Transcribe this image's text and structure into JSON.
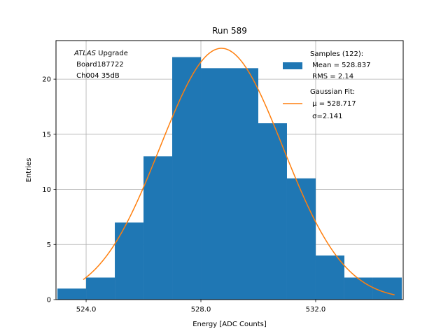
{
  "chart_data": {
    "type": "bar",
    "title": "Run 589",
    "xlabel": "Energy [ADC Counts]",
    "ylabel": "Entries",
    "xlim": [
      522.95,
      535.05
    ],
    "ylim": [
      0,
      23.5
    ],
    "grid": true,
    "x_ticks": [
      524.0,
      528.0,
      532.0
    ],
    "x_tick_labels": [
      "524.0",
      "528.0",
      "532.0"
    ],
    "y_ticks": [
      0,
      5,
      10,
      15,
      20
    ],
    "y_tick_labels": [
      "0",
      "5",
      "10",
      "15",
      "20"
    ],
    "bins": [
      {
        "x0": 523.0,
        "x1": 524.0,
        "count": 1
      },
      {
        "x0": 524.0,
        "x1": 525.0,
        "count": 2
      },
      {
        "x0": 525.0,
        "x1": 526.0,
        "count": 7
      },
      {
        "x0": 526.0,
        "x1": 527.0,
        "count": 13
      },
      {
        "x0": 527.0,
        "x1": 528.0,
        "count": 22
      },
      {
        "x0": 528.0,
        "x1": 529.0,
        "count": 21
      },
      {
        "x0": 529.0,
        "x1": 530.0,
        "count": 21
      },
      {
        "x0": 530.0,
        "x1": 531.0,
        "count": 16
      },
      {
        "x0": 531.0,
        "x1": 532.0,
        "count": 11
      },
      {
        "x0": 532.0,
        "x1": 533.0,
        "count": 4
      },
      {
        "x0": 533.0,
        "x1": 534.0,
        "count": 2
      },
      {
        "x0": 534.0,
        "x1": 535.0,
        "count": 2
      }
    ],
    "fit": {
      "name": "Gaussian Fit",
      "mu": 528.717,
      "sigma": 2.141,
      "amplitude": 22.8,
      "x_range": [
        523.9,
        534.75
      ]
    },
    "bar_color": "#1f77b4",
    "fit_color": "#ff7f0e",
    "legend": {
      "placement": "top-right",
      "entries": [
        {
          "kind": "bar",
          "lines": [
            "Samples (122):",
            " Mean = 528.837",
            " RMS = 2.14"
          ]
        },
        {
          "kind": "line",
          "lines": [
            "Gaussian Fit:",
            " μ = 528.717",
            " σ=2.141"
          ]
        }
      ]
    },
    "annotation": {
      "placement": "top-left",
      "italic_word": "ATLAS",
      "rest_of_first_line": " Upgrade",
      "lines": [
        " Board187722",
        " Ch004 35dB"
      ]
    }
  }
}
